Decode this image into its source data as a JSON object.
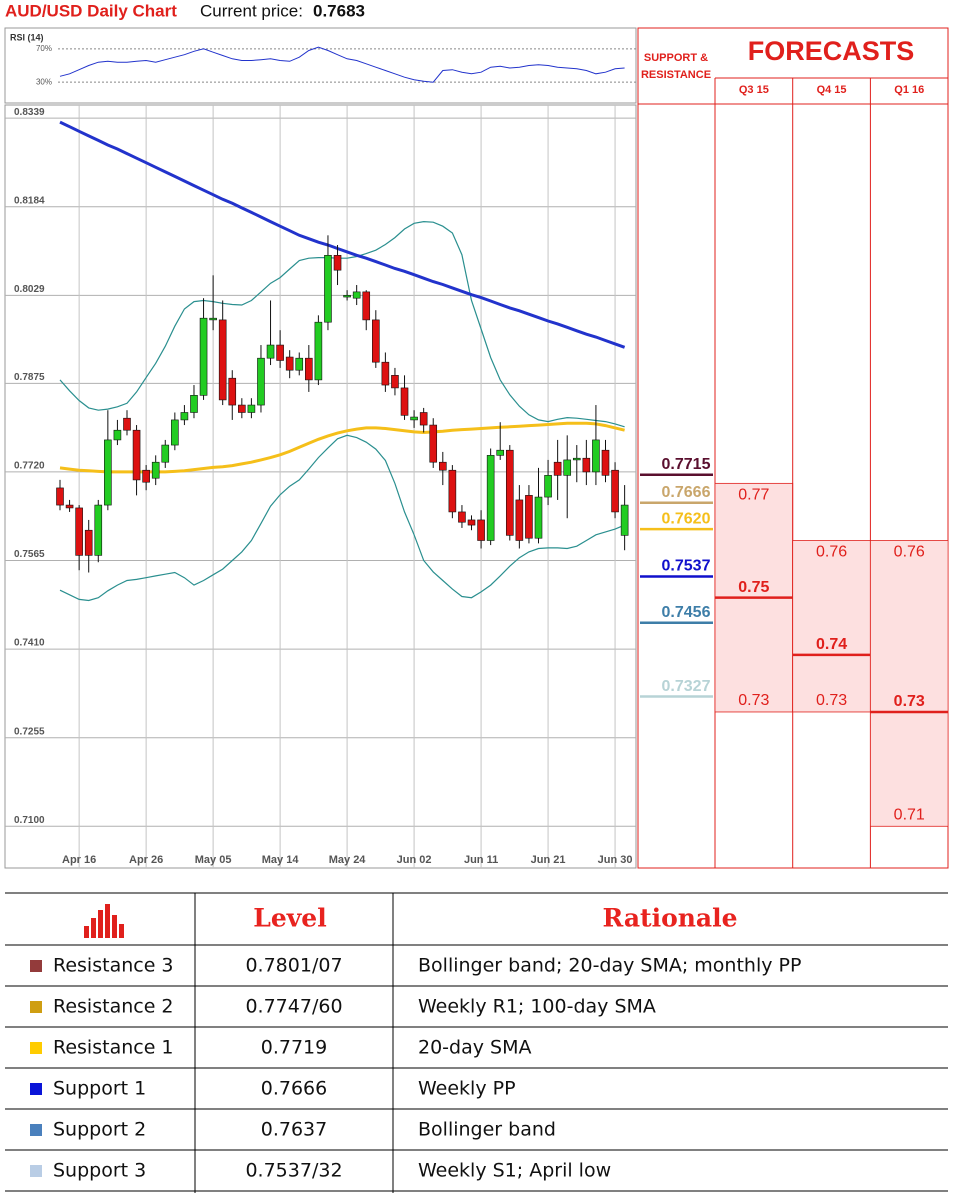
{
  "chart_data": {
    "type": "candlestick",
    "title": "AUD/USD Daily Chart",
    "price_label": "Current price:",
    "price": "0.7683",
    "categories": [
      null,
      null,
      "Apr 16",
      null,
      null,
      null,
      null,
      null,
      null,
      "Apr 26",
      null,
      null,
      null,
      null,
      null,
      null,
      "May 05",
      null,
      null,
      null,
      null,
      null,
      null,
      "May 14",
      null,
      null,
      null,
      null,
      null,
      null,
      "May 24",
      null,
      null,
      null,
      null,
      null,
      null,
      "Jun 02",
      null,
      null,
      null,
      null,
      null,
      null,
      "Jun 11",
      null,
      null,
      null,
      null,
      null,
      null,
      "Jun 21",
      null,
      null,
      null,
      null,
      null,
      null,
      "Jun 30",
      null
    ],
    "open": [
      0.7692,
      0.7662,
      0.7657,
      0.7618,
      0.7574,
      0.7662,
      0.7776,
      0.7814,
      0.7793,
      0.7723,
      0.7709,
      0.7737,
      0.7767,
      0.7811,
      0.7824,
      0.7854,
      0.7986,
      0.7986,
      0.7884,
      0.7837,
      0.7824,
      0.7837,
      0.7919,
      0.7942,
      0.7921,
      0.7898,
      0.7919,
      0.7881,
      0.7982,
      0.8099,
      0.8026,
      0.8024,
      0.8035,
      0.7986,
      0.7912,
      0.7889,
      0.7867,
      0.7811,
      0.7824,
      0.7802,
      0.7737,
      0.7723,
      0.765,
      0.7636,
      0.7636,
      0.76,
      0.7749,
      0.7758,
      0.7671,
      0.7679,
      0.7604,
      0.7676,
      0.7737,
      0.7714,
      0.7741,
      0.7744,
      0.772,
      0.7758,
      0.7723,
      0.7609
    ],
    "high": [
      0.7706,
      0.7671,
      0.7662,
      0.7636,
      0.7671,
      0.7828,
      0.7811,
      0.7828,
      0.7802,
      0.7732,
      0.7749,
      0.7776,
      0.7824,
      0.7837,
      0.7872,
      0.8024,
      0.8064,
      0.802,
      0.7898,
      0.7849,
      0.7849,
      0.7942,
      0.802,
      0.7968,
      0.7933,
      0.7929,
      0.7942,
      0.7994,
      0.8134,
      0.8117,
      0.8038,
      0.8047,
      0.8038,
      0.8003,
      0.7929,
      0.7902,
      0.7889,
      0.7828,
      0.7832,
      0.7814,
      0.7755,
      0.7732,
      0.7662,
      0.7644,
      0.7653,
      0.7761,
      0.7807,
      0.7767,
      0.7697,
      0.7697,
      0.7727,
      0.7741,
      0.7776,
      0.7784,
      0.7767,
      0.7776,
      0.7837,
      0.7776,
      0.7737,
      0.7697
    ],
    "low": [
      0.7653,
      0.765,
      0.7548,
      0.7544,
      0.7562,
      0.7653,
      0.7767,
      0.7784,
      0.7679,
      0.7688,
      0.7697,
      0.7727,
      0.7758,
      0.7802,
      0.7814,
      0.7846,
      0.7968,
      0.7837,
      0.7811,
      0.7814,
      0.7814,
      0.7824,
      0.7907,
      0.7902,
      0.7884,
      0.7889,
      0.786,
      0.7872,
      0.7968,
      0.8047,
      0.802,
      0.8012,
      0.7968,
      0.7902,
      0.786,
      0.7854,
      0.7811,
      0.7797,
      0.7789,
      0.7727,
      0.7697,
      0.7639,
      0.7622,
      0.7618,
      0.7586,
      0.7592,
      0.7741,
      0.76,
      0.7586,
      0.7595,
      0.7595,
      0.7662,
      0.7671,
      0.7639,
      0.7702,
      0.7697,
      0.7697,
      0.7702,
      0.7639,
      0.7583
    ],
    "close": [
      0.7662,
      0.7657,
      0.7574,
      0.7574,
      0.7662,
      0.7776,
      0.7793,
      0.7793,
      0.7706,
      0.7702,
      0.7737,
      0.7767,
      0.7811,
      0.7824,
      0.7854,
      0.7989,
      0.7989,
      0.7846,
      0.7837,
      0.7824,
      0.7837,
      0.7919,
      0.7942,
      0.7915,
      0.7898,
      0.7919,
      0.7881,
      0.7982,
      0.8099,
      0.8073,
      0.8029,
      0.8035,
      0.7986,
      0.7912,
      0.7872,
      0.7867,
      0.7819,
      0.7816,
      0.7802,
      0.7737,
      0.7723,
      0.765,
      0.7632,
      0.7627,
      0.76,
      0.7749,
      0.7758,
      0.7609,
      0.76,
      0.7604,
      0.7676,
      0.7714,
      0.7714,
      0.7741,
      0.7744,
      0.772,
      0.7776,
      0.7714,
      0.765,
      0.7662
    ],
    "up_color": "#22cc22",
    "down_color": "#dd1111",
    "overlays": [
      {
        "color": "#2a8f8f",
        "line_width": 1.2,
        "values": [
          0.7881,
          0.7862,
          0.7845,
          0.7832,
          0.7828,
          0.783,
          0.7834,
          0.784,
          0.786,
          0.7885,
          0.791,
          0.794,
          0.7975,
          0.8005,
          0.8018,
          0.802,
          0.8018,
          0.8015,
          0.8013,
          0.8012,
          0.802,
          0.8035,
          0.805,
          0.806,
          0.8075,
          0.809,
          0.8094,
          0.8095,
          0.8095,
          0.8094,
          0.8094,
          0.8097,
          0.8102,
          0.8108,
          0.8118,
          0.813,
          0.8145,
          0.8155,
          0.8158,
          0.8157,
          0.815,
          0.8138,
          0.81,
          0.802,
          0.797,
          0.792,
          0.7881,
          0.7855,
          0.7835,
          0.782,
          0.7811,
          0.7808,
          0.7812,
          0.7815,
          0.7814,
          0.7812,
          0.781,
          0.7808,
          0.7804,
          0.7799
        ]
      },
      {
        "color": "#2a8f8f",
        "line_width": 1.2,
        "values": [
          0.7513,
          0.7505,
          0.7497,
          0.7495,
          0.75,
          0.7512,
          0.7522,
          0.753,
          0.7532,
          0.7535,
          0.7538,
          0.7541,
          0.7544,
          0.7535,
          0.7522,
          0.753,
          0.754,
          0.755,
          0.7565,
          0.758,
          0.76,
          0.763,
          0.766,
          0.768,
          0.7695,
          0.7706,
          0.7725,
          0.7745,
          0.7762,
          0.7778,
          0.7784,
          0.778,
          0.7772,
          0.776,
          0.774,
          0.77,
          0.765,
          0.761,
          0.7565,
          0.7545,
          0.753,
          0.7515,
          0.7502,
          0.75,
          0.751,
          0.7522,
          0.7538,
          0.7555,
          0.757,
          0.758,
          0.7586,
          0.7587,
          0.7587,
          0.7586,
          0.759,
          0.76,
          0.761,
          0.7615,
          0.762,
          0.7627
        ]
      },
      {
        "color": "#f5bf1a",
        "line_width": 3,
        "values": [
          0.7727,
          0.7725,
          0.7723,
          0.7722,
          0.7721,
          0.772,
          0.772,
          0.772,
          0.772,
          0.772,
          0.772,
          0.772,
          0.7721,
          0.7722,
          0.7724,
          0.7726,
          0.7728,
          0.7729,
          0.7731,
          0.7734,
          0.7737,
          0.7741,
          0.7745,
          0.775,
          0.7756,
          0.7763,
          0.777,
          0.7777,
          0.7783,
          0.7788,
          0.7792,
          0.7795,
          0.7797,
          0.7797,
          0.7796,
          0.7794,
          0.7792,
          0.779,
          0.7789,
          0.779,
          0.7791,
          0.7793,
          0.7794,
          0.7795,
          0.7796,
          0.7797,
          0.7798,
          0.7799,
          0.78,
          0.7801,
          0.7802,
          0.7803,
          0.7804,
          0.7805,
          0.7805,
          0.7805,
          0.7804,
          0.7801,
          0.7797,
          0.7793
        ]
      },
      {
        "color": "#2233cc",
        "line_width": 3,
        "values": [
          0.8332,
          0.8324,
          0.8316,
          0.8308,
          0.83,
          0.8292,
          0.8285,
          0.8277,
          0.8269,
          0.8261,
          0.8253,
          0.8245,
          0.8237,
          0.8229,
          0.8221,
          0.8213,
          0.8205,
          0.8197,
          0.819,
          0.8182,
          0.8174,
          0.8166,
          0.8158,
          0.815,
          0.8142,
          0.8134,
          0.8128,
          0.8122,
          0.8117,
          0.8111,
          0.8105,
          0.8099,
          0.8094,
          0.8088,
          0.8082,
          0.8076,
          0.8071,
          0.8065,
          0.8059,
          0.8053,
          0.8048,
          0.8042,
          0.8036,
          0.803,
          0.8025,
          0.8019,
          0.8013,
          0.8007,
          0.8002,
          0.7996,
          0.799,
          0.7984,
          0.7979,
          0.7973,
          0.7967,
          0.7961,
          0.7956,
          0.795,
          0.7944,
          0.7938
        ]
      }
    ],
    "ylim": [
      0.7027,
      0.8362
    ],
    "yticks": [
      0.8339,
      0.8184,
      0.8029,
      0.7875,
      {
        "value": 0.772,
        "label": "0.7720"
      },
      0.7565,
      {
        "value": 0.741,
        "label": "0.7410"
      },
      0.7255,
      {
        "value": 0.71,
        "label": "0.7100"
      }
    ],
    "grid": true,
    "rsi": {
      "label": "RSI (14)",
      "color": "#2233cc",
      "ylim": [
        5,
        95
      ],
      "yticks": [
        {
          "value": 70,
          "label": "70%"
        },
        {
          "value": 30,
          "label": "30%"
        }
      ],
      "values": [
        37,
        40,
        45,
        50,
        54,
        55,
        54,
        54,
        55,
        56,
        54,
        57,
        60,
        63,
        67,
        70,
        66,
        62,
        58,
        56,
        56,
        57,
        58,
        56,
        55,
        60,
        68,
        72,
        68,
        63,
        58,
        56,
        52,
        48,
        44,
        40,
        36,
        33,
        31,
        30,
        44,
        45,
        42,
        40,
        42,
        48,
        49,
        47,
        48,
        50,
        51,
        50,
        48,
        47,
        46,
        44,
        40,
        42,
        46,
        47
      ]
    },
    "levels": {
      "title": "SUPPORT & RESISTANCE",
      "values": [
        0.7715,
        0.7666,
        0.762,
        0.7537,
        0.7456,
        0.7327
      ],
      "value_labels": [
        "0.7715",
        "0.7666",
        "0.7620",
        "0.7537",
        "0.7456",
        "0.7327"
      ],
      "colors": [
        "#5a0f2e",
        "#c9a66b",
        "#f5bf1a",
        "#1010cc",
        "#3e7ea8",
        "#b7d3d6"
      ]
    },
    "forecasts": {
      "title": "FORECASTS",
      "color": "#e0201c",
      "band_color": "#fde0e0",
      "periods": [
        "Q3 15",
        "Q4 15",
        "Q1 16"
      ],
      "high": [
        0.77,
        0.76,
        0.76
      ],
      "mid": [
        0.75,
        0.74,
        0.73
      ],
      "low": [
        0.73,
        0.73,
        0.71
      ]
    }
  },
  "table": {
    "header": [
      "Level",
      "Rationale"
    ],
    "rows": [
      {
        "name": "Resistance 3",
        "color": "#933b3b",
        "level": "0.7801/07",
        "rationale": "Bollinger band; 20-day SMA; monthly PP"
      },
      {
        "name": "Resistance 2",
        "color": "#cf9e12",
        "level": "0.7747/60",
        "rationale": "Weekly R1; 100-day SMA"
      },
      {
        "name": "Resistance 1",
        "color": "#ffcc00",
        "level": "0.7719",
        "rationale": "20-day SMA"
      },
      {
        "name": "Support 1",
        "color": "#0a14d8",
        "level": "0.7666",
        "rationale": "Weekly PP"
      },
      {
        "name": "Support 2",
        "color": "#4a80bd",
        "level": "0.7637",
        "rationale": "Bollinger band"
      },
      {
        "name": "Support 3",
        "color": "#b9cde5",
        "level": "0.7537/32",
        "rationale": "Weekly S1; April low"
      }
    ]
  }
}
